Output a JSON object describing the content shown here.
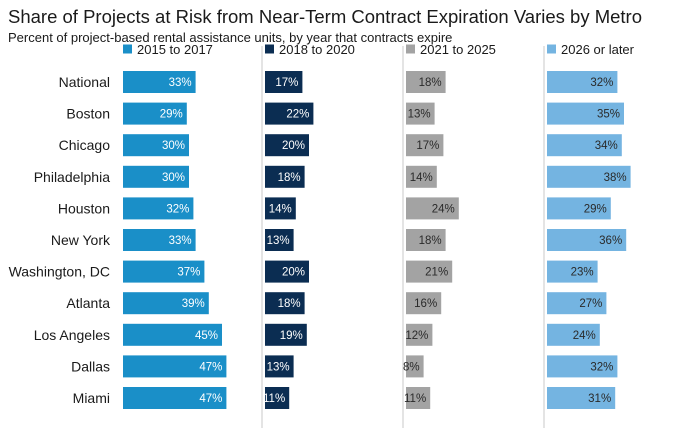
{
  "title": "Share of Projects at Risk from Near-Term Contract Expiration Varies by Metro",
  "subtitle": "Percent of project-based rental assistance units, by year that contracts expire",
  "chart_data": {
    "type": "bar",
    "orientation": "horizontal",
    "layout": "small-multiples",
    "categories": [
      "National",
      "Boston",
      "Chicago",
      "Philadelphia",
      "Houston",
      "New York",
      "Washington, DC",
      "Atlanta",
      "Los Angeles",
      "Dallas",
      "Miami"
    ],
    "series": [
      {
        "name": "2015 to 2017",
        "color": "#1a8fc8",
        "label_color": "#ffffff",
        "values": [
          33,
          29,
          30,
          30,
          32,
          33,
          37,
          39,
          45,
          47,
          47
        ],
        "labels": [
          "33%",
          "29%",
          "30%",
          "30%",
          "32%",
          "33%",
          "37%",
          "39%",
          "45%",
          "47%",
          "47%"
        ]
      },
      {
        "name": "2018 to 2020",
        "color": "#0b2d52",
        "label_color": "#ffffff",
        "values": [
          17,
          22,
          20,
          18,
          14,
          13,
          20,
          18,
          19,
          13,
          11
        ],
        "labels": [
          "17%",
          "22%",
          "20%",
          "18%",
          "14%",
          "13%",
          "20%",
          "18%",
          "19%",
          "13%",
          "11%"
        ]
      },
      {
        "name": "2021 to 2025",
        "color": "#a3a3a3",
        "label_color": "#2a2a2a",
        "values": [
          18,
          13,
          17,
          14,
          24,
          18,
          21,
          16,
          12,
          8,
          11
        ],
        "labels": [
          "18%",
          "13%",
          "17%",
          "14%",
          "24%",
          "18%",
          "21%",
          "16%",
          "12%",
          "8%",
          "11%"
        ]
      },
      {
        "name": "2026 or later",
        "color": "#74b4e1",
        "label_color": "#2a2a2a",
        "values": [
          32,
          35,
          34,
          38,
          29,
          36,
          23,
          27,
          24,
          32,
          31
        ],
        "labels": [
          "32%",
          "35%",
          "34%",
          "38%",
          "29%",
          "36%",
          "23%",
          "27%",
          "24%",
          "32%",
          "31%"
        ]
      }
    ],
    "legend_position": "top",
    "grid": false,
    "separator_lines": true
  }
}
